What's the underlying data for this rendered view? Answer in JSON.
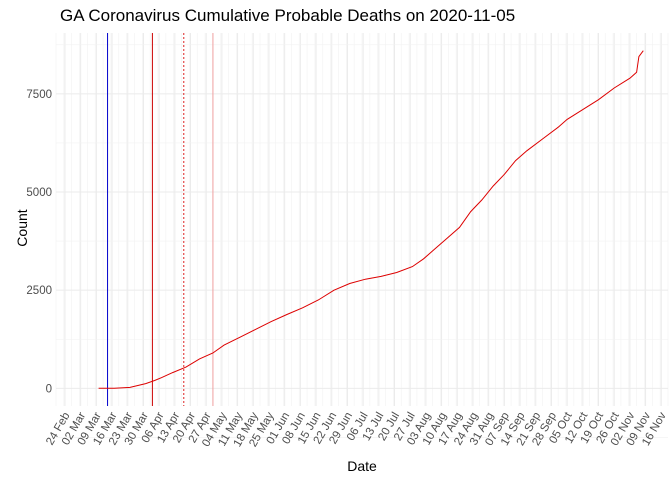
{
  "chart_data": {
    "type": "line",
    "title": "GA Coronavirus Cumulative Probable Deaths on 2020-11-05",
    "xlabel": "Date",
    "ylabel": "Count",
    "x_domain": [
      "2020-02-20",
      "2020-11-19"
    ],
    "ylim": [
      -450,
      9050
    ],
    "y_ticks": [
      0,
      2500,
      5000,
      7500
    ],
    "x_tick_labels": [
      {
        "date": "2020-02-24",
        "label": "24 Feb"
      },
      {
        "date": "2020-03-02",
        "label": "02 Mar"
      },
      {
        "date": "2020-03-09",
        "label": "09 Mar"
      },
      {
        "date": "2020-03-16",
        "label": "16 Mar"
      },
      {
        "date": "2020-03-23",
        "label": "23 Mar"
      },
      {
        "date": "2020-03-30",
        "label": "30 Mar"
      },
      {
        "date": "2020-04-06",
        "label": "06 Apr"
      },
      {
        "date": "2020-04-13",
        "label": "13 Apr"
      },
      {
        "date": "2020-04-20",
        "label": "20 Apr"
      },
      {
        "date": "2020-04-27",
        "label": "27 Apr"
      },
      {
        "date": "2020-05-04",
        "label": "04 May"
      },
      {
        "date": "2020-05-11",
        "label": "11 May"
      },
      {
        "date": "2020-05-18",
        "label": "18 May"
      },
      {
        "date": "2020-05-25",
        "label": "25 May"
      },
      {
        "date": "2020-06-01",
        "label": "01 Jun"
      },
      {
        "date": "2020-06-08",
        "label": "08 Jun"
      },
      {
        "date": "2020-06-15",
        "label": "15 Jun"
      },
      {
        "date": "2020-06-22",
        "label": "22 Jun"
      },
      {
        "date": "2020-06-29",
        "label": "29 Jun"
      },
      {
        "date": "2020-07-06",
        "label": "06 Jul"
      },
      {
        "date": "2020-07-13",
        "label": "13 Jul"
      },
      {
        "date": "2020-07-20",
        "label": "20 Jul"
      },
      {
        "date": "2020-07-27",
        "label": "27 Jul"
      },
      {
        "date": "2020-08-03",
        "label": "03 Aug"
      },
      {
        "date": "2020-08-10",
        "label": "10 Aug"
      },
      {
        "date": "2020-08-17",
        "label": "17 Aug"
      },
      {
        "date": "2020-08-24",
        "label": "24 Aug"
      },
      {
        "date": "2020-08-31",
        "label": "31 Aug"
      },
      {
        "date": "2020-09-07",
        "label": "07 Sep"
      },
      {
        "date": "2020-09-14",
        "label": "14 Sep"
      },
      {
        "date": "2020-09-21",
        "label": "21 Sep"
      },
      {
        "date": "2020-09-28",
        "label": "28 Sep"
      },
      {
        "date": "2020-10-05",
        "label": "05 Oct"
      },
      {
        "date": "2020-10-12",
        "label": "12 Oct"
      },
      {
        "date": "2020-10-19",
        "label": "19 Oct"
      },
      {
        "date": "2020-10-26",
        "label": "26 Oct"
      },
      {
        "date": "2020-11-02",
        "label": "02 Nov"
      },
      {
        "date": "2020-11-09",
        "label": "09 Nov"
      },
      {
        "date": "2020-11-16",
        "label": "16 Nov"
      }
    ],
    "grid": true,
    "legend": "none",
    "reference_lines": [
      {
        "date": "2020-03-14",
        "color": "#0000cc",
        "style": "solid"
      },
      {
        "date": "2020-04-03",
        "color": "#cc0000",
        "style": "solid"
      },
      {
        "date": "2020-04-17",
        "color": "#dd2222",
        "style": "dotted"
      },
      {
        "date": "2020-04-30",
        "color": "#f0a0a0",
        "style": "solid"
      }
    ],
    "series": [
      {
        "color": "#dd0000",
        "points": [
          [
            "2020-03-10",
            0
          ],
          [
            "2020-03-17",
            0
          ],
          [
            "2020-03-24",
            25
          ],
          [
            "2020-03-31",
            120
          ],
          [
            "2020-04-04",
            200
          ],
          [
            "2020-04-07",
            270
          ],
          [
            "2020-04-12",
            400
          ],
          [
            "2020-04-18",
            540
          ],
          [
            "2020-04-24",
            750
          ],
          [
            "2020-04-30",
            900
          ],
          [
            "2020-05-05",
            1100
          ],
          [
            "2020-05-12",
            1300
          ],
          [
            "2020-05-19",
            1500
          ],
          [
            "2020-05-26",
            1700
          ],
          [
            "2020-06-02",
            1880
          ],
          [
            "2020-06-09",
            2050
          ],
          [
            "2020-06-16",
            2250
          ],
          [
            "2020-06-23",
            2500
          ],
          [
            "2020-06-30",
            2670
          ],
          [
            "2020-07-07",
            2780
          ],
          [
            "2020-07-14",
            2850
          ],
          [
            "2020-07-21",
            2950
          ],
          [
            "2020-07-28",
            3100
          ],
          [
            "2020-08-02",
            3300
          ],
          [
            "2020-08-07",
            3550
          ],
          [
            "2020-08-12",
            3800
          ],
          [
            "2020-08-18",
            4100
          ],
          [
            "2020-08-23",
            4500
          ],
          [
            "2020-08-28",
            4800
          ],
          [
            "2020-09-02",
            5150
          ],
          [
            "2020-09-07",
            5450
          ],
          [
            "2020-09-12",
            5800
          ],
          [
            "2020-09-17",
            6050
          ],
          [
            "2020-09-24",
            6350
          ],
          [
            "2020-10-01",
            6650
          ],
          [
            "2020-10-05",
            6850
          ],
          [
            "2020-10-12",
            7100
          ],
          [
            "2020-10-19",
            7350
          ],
          [
            "2020-10-26",
            7650
          ],
          [
            "2020-11-02",
            7900
          ],
          [
            "2020-11-05",
            8050
          ],
          [
            "2020-11-06",
            8450
          ],
          [
            "2020-11-08",
            8600
          ]
        ]
      }
    ]
  }
}
